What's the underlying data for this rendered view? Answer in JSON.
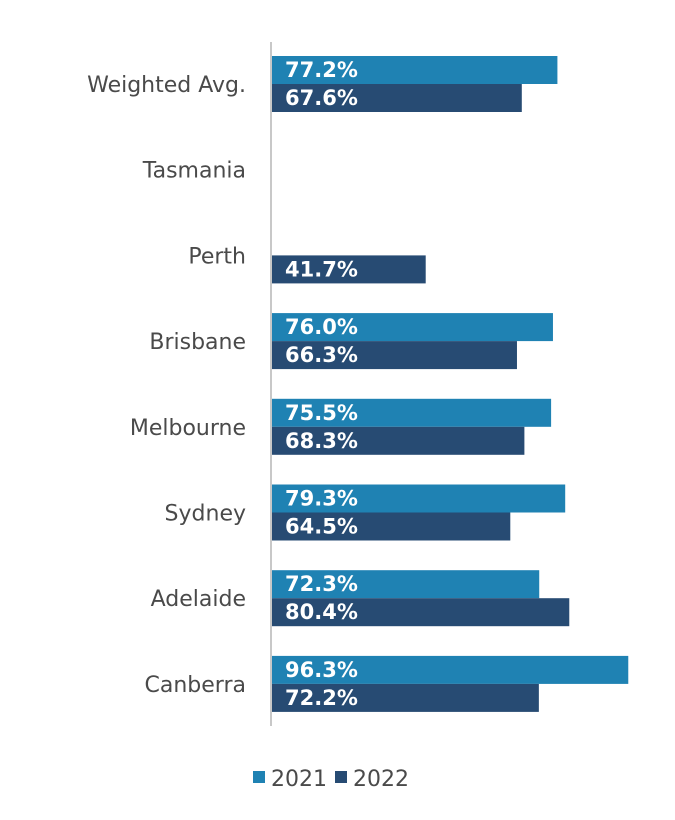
{
  "chart_data": {
    "type": "bar",
    "orientation": "horizontal",
    "categories": [
      "Weighted Avg.",
      "Tasmania",
      "Perth",
      "Brisbane",
      "Melbourne",
      "Sydney",
      "Adelaide",
      "Canberra"
    ],
    "series": [
      {
        "name": "2021",
        "color": "#1f82b3",
        "values": [
          77.2,
          null,
          null,
          76.0,
          75.5,
          79.3,
          72.3,
          96.3
        ],
        "labels": [
          "77.2%",
          "",
          "",
          "76.0%",
          "75.5%",
          "79.3%",
          "72.3%",
          "96.3%"
        ]
      },
      {
        "name": "2022",
        "color": "#274b73",
        "values": [
          67.6,
          null,
          41.7,
          66.3,
          68.3,
          64.5,
          80.4,
          72.2
        ],
        "labels": [
          "67.6%",
          "",
          "41.7%",
          "66.3%",
          "68.3%",
          "64.5%",
          "80.4%",
          "72.2%"
        ]
      }
    ],
    "title": "",
    "xlabel": "",
    "ylabel": "",
    "xlim": [
      0,
      100
    ],
    "grid": false,
    "legend_position": "bottom"
  }
}
